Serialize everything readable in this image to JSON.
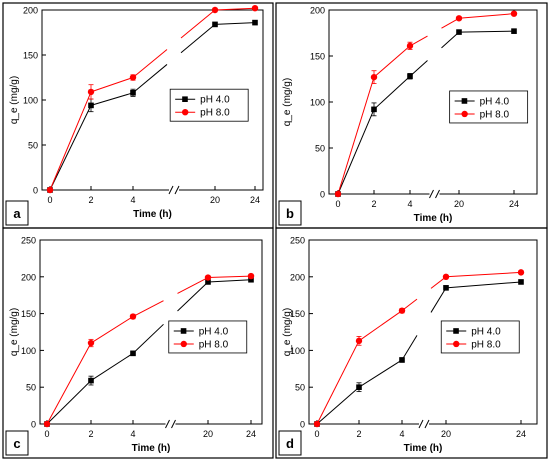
{
  "chart_data": [
    {
      "panel_label": "a",
      "type": "line",
      "xlabel": "Time (h)",
      "ylabel": "q_e (mg/g)",
      "ylim": [
        0,
        200
      ],
      "yticks": [
        0,
        50,
        100,
        150,
        200
      ],
      "xtick_labels": [
        "0",
        "2",
        "4",
        "20",
        "24"
      ],
      "axis_break_between": [
        "4",
        "20"
      ],
      "legend_position": "center-right",
      "series": [
        {
          "name": "pH 4.0",
          "marker": "square",
          "color": "#000000",
          "x": [
            "0",
            "2",
            "4",
            "20",
            "24"
          ],
          "values": [
            0,
            94,
            108,
            184,
            186
          ],
          "errors": [
            0,
            7,
            4,
            2,
            2
          ]
        },
        {
          "name": "pH 8.0",
          "marker": "circle",
          "color": "#ff0000",
          "x": [
            "0",
            "2",
            "4",
            "20",
            "24"
          ],
          "values": [
            0,
            109,
            125,
            200,
            202
          ],
          "errors": [
            0,
            8,
            3,
            2,
            2
          ]
        }
      ]
    },
    {
      "panel_label": "b",
      "type": "line",
      "xlabel": "Time (h)",
      "ylabel": "q_e (mg/g)",
      "ylim": [
        0,
        200
      ],
      "yticks": [
        0,
        50,
        100,
        150,
        200
      ],
      "xtick_labels": [
        "0",
        "2",
        "4",
        "20",
        "24"
      ],
      "axis_break_between": [
        "4",
        "20"
      ],
      "legend_position": "center-right",
      "series": [
        {
          "name": "pH 4.0",
          "marker": "square",
          "color": "#000000",
          "x": [
            "0",
            "2",
            "4",
            "20",
            "24"
          ],
          "values": [
            0,
            92,
            128,
            176,
            177
          ],
          "errors": [
            0,
            7,
            3,
            2,
            2
          ]
        },
        {
          "name": "pH 8.0",
          "marker": "circle",
          "color": "#ff0000",
          "x": [
            "0",
            "2",
            "4",
            "20",
            "24"
          ],
          "values": [
            0,
            127,
            161,
            191,
            196
          ],
          "errors": [
            0,
            7,
            4,
            2,
            2
          ]
        }
      ]
    },
    {
      "panel_label": "c",
      "type": "line",
      "xlabel": "Time (h)",
      "ylabel": "q_e (mg/g)",
      "ylim": [
        0,
        250
      ],
      "yticks": [
        0,
        50,
        100,
        150,
        200,
        250
      ],
      "xtick_labels": [
        "0",
        "2",
        "4",
        "20",
        "24"
      ],
      "axis_break_between": [
        "4",
        "20"
      ],
      "legend_position": "center-right",
      "series": [
        {
          "name": "pH 4.0",
          "marker": "square",
          "color": "#000000",
          "x": [
            "0",
            "2",
            "4",
            "20",
            "24"
          ],
          "values": [
            0,
            59,
            96,
            193,
            196
          ],
          "errors": [
            0,
            6,
            3,
            2,
            2
          ]
        },
        {
          "name": "pH 8.0",
          "marker": "circle",
          "color": "#ff0000",
          "x": [
            "0",
            "2",
            "4",
            "20",
            "24"
          ],
          "values": [
            0,
            110,
            146,
            199,
            201
          ],
          "errors": [
            0,
            5,
            3,
            2,
            2
          ]
        }
      ]
    },
    {
      "panel_label": "d",
      "type": "line",
      "xlabel": "Time (h)",
      "ylabel": "q_e (mg/g)",
      "ylim": [
        0,
        250
      ],
      "yticks": [
        0,
        50,
        100,
        150,
        200,
        250
      ],
      "xtick_labels": [
        "0",
        "2",
        "4",
        "20",
        "24"
      ],
      "axis_break_between": [
        "4",
        "20"
      ],
      "legend_position": "center-right",
      "series": [
        {
          "name": "pH 4.0",
          "marker": "square",
          "color": "#000000",
          "x": [
            "0",
            "2",
            "4",
            "20",
            "24"
          ],
          "values": [
            0,
            50,
            87,
            185,
            193
          ],
          "errors": [
            0,
            6,
            3,
            2,
            2
          ]
        },
        {
          "name": "pH 8.0",
          "marker": "circle",
          "color": "#ff0000",
          "x": [
            "0",
            "2",
            "4",
            "20",
            "24"
          ],
          "values": [
            0,
            113,
            154,
            200,
            206
          ],
          "errors": [
            0,
            6,
            3,
            2,
            2
          ]
        }
      ]
    }
  ]
}
